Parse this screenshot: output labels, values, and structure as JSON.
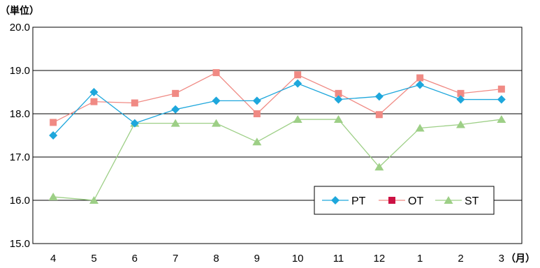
{
  "chart_data": {
    "type": "line",
    "ylabel": "（単位）",
    "xlabel": "（月）",
    "ylim": [
      15.0,
      20.0
    ],
    "yticks": [
      "15.0",
      "16.0",
      "17.0",
      "18.0",
      "19.0",
      "20.0"
    ],
    "grid": true,
    "legend_position": "bottom-right",
    "categories": [
      "4",
      "5",
      "6",
      "7",
      "8",
      "9",
      "10",
      "11",
      "12",
      "1",
      "2",
      "3"
    ],
    "series": [
      {
        "name": "PT",
        "color": "#1ea7dc",
        "marker": "diamond",
        "values": [
          17.5,
          18.5,
          17.78,
          18.1,
          18.3,
          18.3,
          18.7,
          18.33,
          18.4,
          18.67,
          18.33,
          18.33
        ]
      },
      {
        "name": "OT",
        "color": "#f08a84",
        "legend_color": "#cc1144",
        "marker": "square",
        "values": [
          17.8,
          18.28,
          18.25,
          18.47,
          18.95,
          18.0,
          18.9,
          18.47,
          17.98,
          18.83,
          18.47,
          18.57
        ]
      },
      {
        "name": "ST",
        "color": "#9dcf86",
        "marker": "triangle",
        "values": [
          16.08,
          16.0,
          17.78,
          17.78,
          17.78,
          17.35,
          17.87,
          17.87,
          16.77,
          17.67,
          17.75,
          17.87
        ]
      }
    ]
  }
}
